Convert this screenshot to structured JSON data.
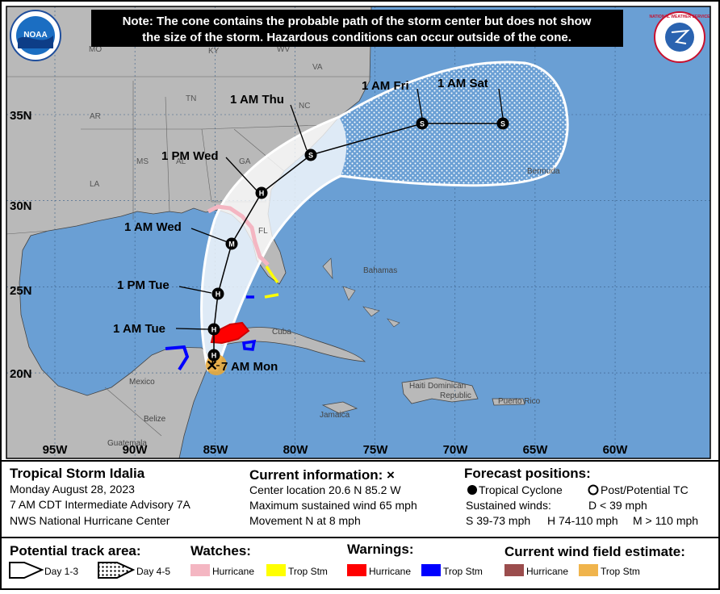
{
  "note": [
    "Note: The cone contains the probable path of the storm center but does not show",
    "the size of the storm. Hazardous conditions can occur outside of the cone."
  ],
  "logos": {
    "noaa": "NOAA",
    "nws": "NATIONAL WEATHER SERVICE"
  },
  "map": {
    "lat_labels": [
      "35N",
      "30N",
      "25N",
      "20N"
    ],
    "lon_labels": [
      "95W",
      "90W",
      "85W",
      "80W",
      "75W",
      "70W",
      "65W",
      "60W"
    ],
    "places": [
      "MO",
      "KY",
      "WV",
      "VA",
      "TN",
      "NC",
      "AR",
      "MS",
      "AL",
      "GA",
      "LA",
      "FL",
      "Bermuda",
      "Bahamas",
      "Cuba",
      "Mexico",
      "Belize",
      "Guatemala",
      "Jamaica",
      "Haiti",
      "Puerto Rico"
    ],
    "dominican_republic": [
      "Dominican",
      "Republic"
    ],
    "forecast_points": [
      {
        "time": "7 AM Mon"
      },
      {
        "symbol": "H"
      },
      {
        "time": "1 AM Tue",
        "symbol": "H"
      },
      {
        "time": "1 PM Tue",
        "symbol": "H"
      },
      {
        "time": "1 AM Wed",
        "symbol": "M"
      },
      {
        "time": "1 PM Wed",
        "symbol": "H"
      },
      {
        "time": "1 AM Thu",
        "symbol": "S"
      },
      {
        "time": "1 AM Fri",
        "symbol": "S"
      },
      {
        "time": "1 AM Sat",
        "symbol": "S"
      }
    ]
  },
  "storm": {
    "name": "Tropical Storm Idalia",
    "date": "Monday August 28, 2023",
    "advisory": "7 AM CDT Intermediate Advisory 7A",
    "center": "NWS National Hurricane Center"
  },
  "current": {
    "title": "Current information: ×",
    "lines": [
      "Center location 20.6 N 85.2 W",
      "Maximum sustained wind 65 mph",
      "Movement N at 8 mph"
    ]
  },
  "forecast": {
    "title": "Forecast positions:",
    "tropical": "Tropical Cyclone",
    "post": "Post/Potential TC",
    "winds": "Sustained winds:",
    "d": "D < 39 mph",
    "s": "S 39-73 mph",
    "h": "H 74-110 mph",
    "m": "M > 110 mph"
  },
  "legend": {
    "track_title": "Potential track area:",
    "day13": "Day 1-3",
    "day45": "Day 4-5",
    "watches": {
      "title": "Watches:",
      "hurricane": "Hurricane",
      "tropical_storm": "Trop Stm"
    },
    "warnings": {
      "title": "Warnings:",
      "hurricane": "Hurricane",
      "tropical_storm": "Trop Stm"
    },
    "wind_field": {
      "title": "Current wind field estimate:",
      "hurricane": "Hurricane",
      "tropical_storm": "Trop Stm"
    }
  }
}
